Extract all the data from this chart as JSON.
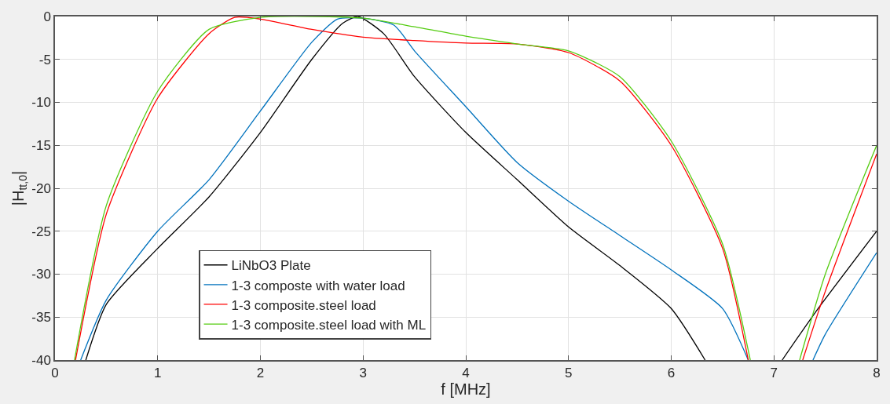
{
  "chart_data": {
    "type": "line",
    "xlabel": "f [MHz]",
    "ylabel": "|H$_{tt,0}$|",
    "xlim": [
      0,
      8
    ],
    "xticks": [
      0,
      1,
      2,
      3,
      4,
      5,
      6,
      7,
      8
    ],
    "ylim": [
      -40,
      0
    ],
    "yticks": [
      -40,
      -35,
      -30,
      -25,
      -20,
      -15,
      -10,
      -5,
      0
    ],
    "grid": true,
    "legend": "bottom",
    "marker": "none",
    "line_style": "solid",
    "series": [
      {
        "name": "LiNbO3 Plate",
        "color": "#000000",
        "x": [
          0.3,
          0.5,
          1,
          1.5,
          2,
          2.5,
          2.8,
          2.95,
          3.2,
          3.5,
          4,
          4.5,
          5,
          5.5,
          6,
          6.33,
          null,
          7.08,
          7.4,
          8
        ],
        "values": [
          -40,
          -33.5,
          -27,
          -21,
          -13.5,
          -5,
          -0.8,
          0,
          -2,
          -7,
          -13.5,
          -19,
          -24.5,
          -29,
          -34,
          -40,
          null,
          -40,
          -34.5,
          -25
        ]
      },
      {
        "name": "1-3 composte with water load",
        "color": "#0072bd",
        "x": [
          0.25,
          0.5,
          1,
          1.5,
          2,
          2.5,
          2.75,
          3,
          3.3,
          3.5,
          4,
          4.5,
          5,
          5.5,
          6,
          6.5,
          6.75,
          null,
          7.38,
          7.5,
          8
        ],
        "values": [
          -40,
          -33,
          -25,
          -19,
          -11,
          -3,
          -0.3,
          -0.2,
          -1,
          -4,
          -10.5,
          -17,
          -21.5,
          -25.5,
          -29.5,
          -34,
          -40,
          null,
          -40,
          -37,
          -27.5
        ]
      },
      {
        "name": "1-3 composite.steel load",
        "color": "#ff0000",
        "x": [
          0.2,
          0.5,
          1,
          1.5,
          1.75,
          2,
          2.5,
          3,
          3.5,
          4,
          4.5,
          5,
          5.5,
          6,
          6.5,
          6.75,
          null,
          7.28,
          7.5,
          8
        ],
        "values": [
          -40,
          -23,
          -9.5,
          -2,
          -0.1,
          -0.3,
          -1.5,
          -2.4,
          -2.8,
          -3.1,
          -3.2,
          -4.2,
          -7.5,
          -15,
          -27,
          -40,
          null,
          -40,
          -32,
          -16
        ]
      },
      {
        "name": "1-3 composite.steel load with ML",
        "color": "#55cc11",
        "x": [
          0.19,
          0.5,
          1,
          1.5,
          2,
          2.5,
          3,
          3.5,
          4,
          4.5,
          5,
          5.5,
          6,
          6.5,
          6.77,
          null,
          7.25,
          7.5,
          8
        ],
        "values": [
          -40,
          -22,
          -8.7,
          -1.5,
          -0.1,
          0,
          -0.2,
          -1.2,
          -2.3,
          -3.2,
          -4,
          -7,
          -14.5,
          -26.5,
          -40,
          null,
          -40,
          -30,
          -15
        ]
      }
    ]
  }
}
